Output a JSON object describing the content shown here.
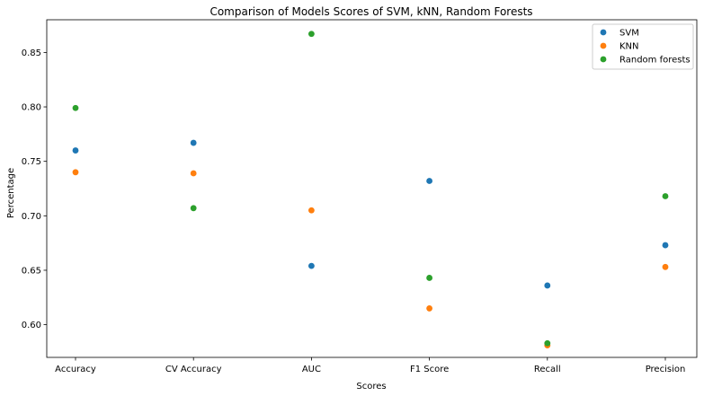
{
  "chart_data": {
    "type": "scatter",
    "title": "Comparison of Models Scores of SVM, kNN, Random Forests",
    "xlabel": "Scores",
    "ylabel": "Percentage",
    "categories": [
      "Accuracy",
      "CV Accuracy",
      "AUC",
      "F1 Score",
      "Recall",
      "Precision"
    ],
    "ylim": [
      0.57,
      0.88
    ],
    "yticks": [
      0.6,
      0.65,
      0.7,
      0.75,
      0.8,
      0.85
    ],
    "ytick_labels": [
      "0.60",
      "0.65",
      "0.70",
      "0.75",
      "0.80",
      "0.85"
    ],
    "grid": false,
    "legend_position": "top-right",
    "series": [
      {
        "name": "SVM",
        "color": "#1f77b4",
        "values": [
          0.76,
          0.767,
          0.654,
          0.732,
          0.636,
          0.673
        ]
      },
      {
        "name": "KNN",
        "color": "#ff7f0e",
        "values": [
          0.74,
          0.739,
          0.705,
          0.615,
          0.581,
          0.653
        ]
      },
      {
        "name": "Random forests",
        "color": "#2ca02c",
        "values": [
          0.799,
          0.707,
          0.867,
          0.643,
          0.583,
          0.718
        ]
      }
    ]
  }
}
